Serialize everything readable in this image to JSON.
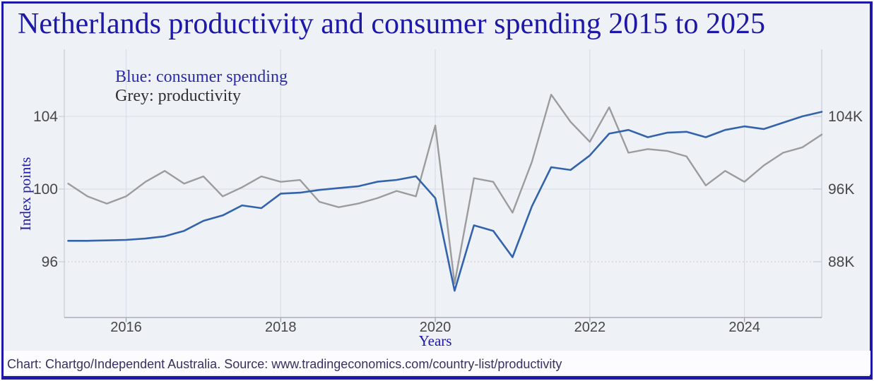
{
  "footer": {
    "text": "Chart: Chartgo/Independent Australia. Source: www.tradingeconomics.com/country-list/productivity"
  },
  "colors": {
    "frame_border": "#1d18a8",
    "chart_background": "#eef1f6",
    "footer_background": "#fcfcfe",
    "title_text": "#1d18a8",
    "legend_blue_text": "#2a2aad",
    "legend_grey_text": "#2f2f2f",
    "tick_text": "#474747",
    "axis_title_text": "#1d18a8",
    "footer_text": "#37315e",
    "blue_line": "#3263ac",
    "grey_line": "#9c9c9c",
    "gridline": "#d9dde7",
    "gridline_dotted": "#d8cbce",
    "bottom_axis_line": "#a9adb9",
    "side_axis_line": "#c6cad4",
    "tick_mark": "#9da1ad"
  },
  "chart_data": {
    "type": "line",
    "title": "Netherlands productivity and consumer spending 2015 to 2025",
    "xlabel": "Years",
    "ylabel_left": "Index points",
    "legend": [
      "Blue: consumer spending",
      "Grey: productivity"
    ],
    "legend_position": "top-left",
    "grid": true,
    "x": [
      2015.25,
      2015.5,
      2015.75,
      2016.0,
      2016.25,
      2016.5,
      2016.75,
      2017.0,
      2017.25,
      2017.5,
      2017.75,
      2018.0,
      2018.25,
      2018.5,
      2018.75,
      2019.0,
      2019.25,
      2019.5,
      2019.75,
      2020.0,
      2020.25,
      2020.5,
      2020.75,
      2021.0,
      2021.25,
      2021.5,
      2021.75,
      2022.0,
      2022.25,
      2022.5,
      2022.75,
      2023.0,
      2023.25,
      2023.5,
      2023.75,
      2024.0,
      2024.25,
      2024.5,
      2024.75,
      2025.0
    ],
    "series": [
      {
        "name": "consumer spending",
        "axis": "right",
        "color_key": "blue_line",
        "stroke_width": 2.6,
        "values": [
          90.3,
          90.3,
          90.35,
          90.4,
          90.55,
          90.8,
          91.4,
          92.5,
          93.1,
          94.2,
          93.9,
          95.5,
          95.6,
          95.9,
          96.1,
          96.3,
          96.8,
          97.0,
          97.4,
          95.0,
          84.8,
          92.0,
          91.4,
          88.5,
          94.1,
          98.4,
          98.1,
          99.7,
          102.1,
          102.5,
          101.7,
          102.2,
          102.3,
          101.7,
          102.5,
          102.9,
          102.6,
          103.3,
          104.0,
          104.5
        ]
      },
      {
        "name": "productivity",
        "axis": "left",
        "color_key": "grey_line",
        "stroke_width": 2.4,
        "values": [
          100.3,
          99.6,
          99.2,
          99.6,
          100.4,
          101.0,
          100.3,
          100.7,
          99.6,
          100.1,
          100.7,
          100.4,
          100.5,
          99.3,
          99.0,
          99.2,
          99.5,
          99.9,
          99.6,
          103.5,
          94.8,
          100.6,
          100.4,
          98.7,
          101.5,
          105.2,
          103.7,
          102.6,
          104.5,
          102.0,
          102.2,
          102.1,
          101.8,
          100.2,
          101.0,
          100.4,
          101.3,
          102.0,
          102.3,
          103.0
        ]
      }
    ],
    "x_ticks": [
      {
        "v": 2016,
        "label": "2016"
      },
      {
        "v": 2018,
        "label": "2018"
      },
      {
        "v": 2020,
        "label": "2020"
      },
      {
        "v": 2022,
        "label": "2022"
      },
      {
        "v": 2024,
        "label": "2024"
      }
    ],
    "xlim": [
      2015.2,
      2025.0
    ],
    "left_axis": {
      "title": "Index points",
      "min": 92.93,
      "max": 107.69,
      "ticks": [
        {
          "v": 104,
          "label": "104"
        },
        {
          "v": 100,
          "label": "100"
        },
        {
          "v": 96,
          "label": "96"
        }
      ]
    },
    "right_axis": {
      "min": 81.86,
      "max": 111.37,
      "ticks": [
        {
          "v": 104,
          "label": "104K"
        },
        {
          "v": 96,
          "label": "96K"
        },
        {
          "v": 88,
          "label": "88K"
        }
      ]
    }
  }
}
